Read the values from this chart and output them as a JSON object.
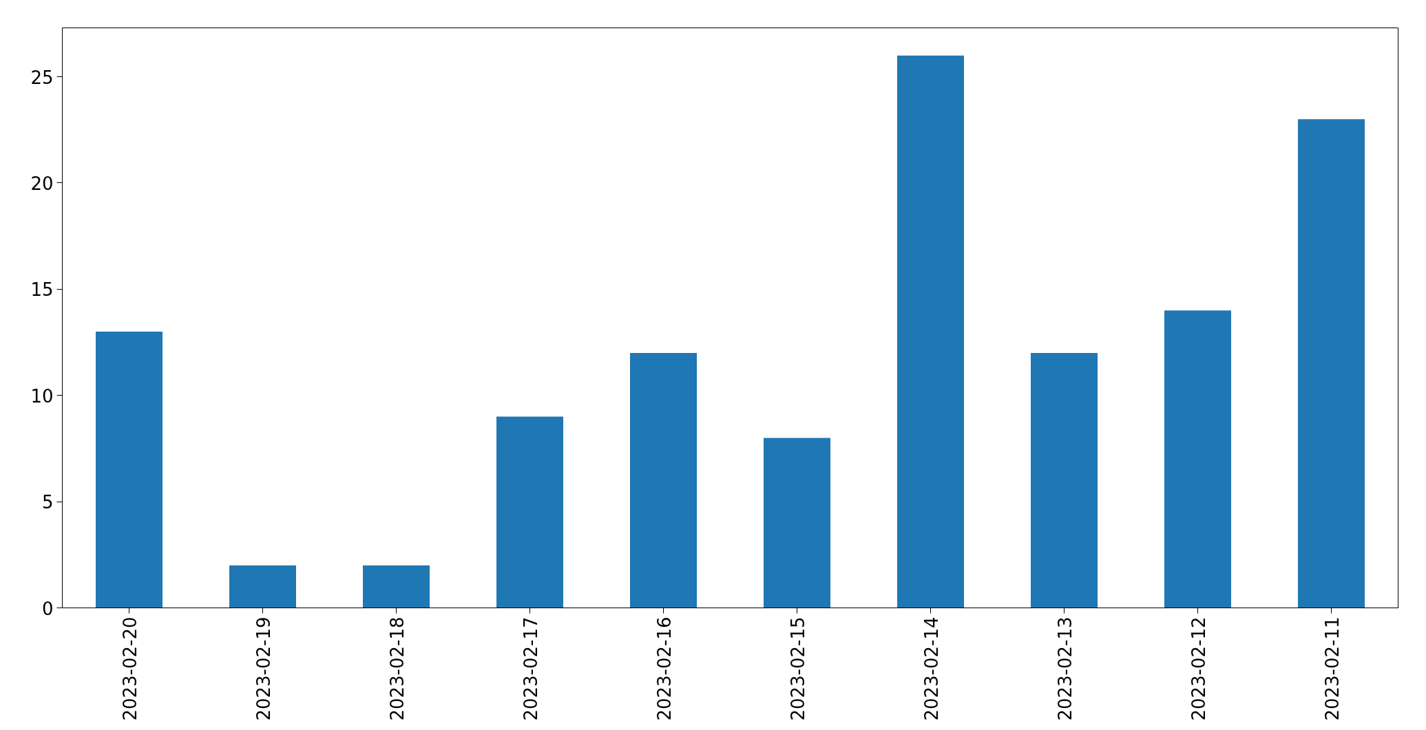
{
  "chart_data": {
    "type": "bar",
    "categories": [
      "2023-02-20",
      "2023-02-19",
      "2023-02-18",
      "2023-02-17",
      "2023-02-16",
      "2023-02-15",
      "2023-02-14",
      "2023-02-13",
      "2023-02-12",
      "2023-02-11"
    ],
    "values": [
      13,
      2,
      2,
      9,
      12,
      8,
      26,
      12,
      14,
      23
    ],
    "color": "#1f77b4",
    "ylim": [
      0,
      27.3
    ],
    "yticks": [
      0,
      5,
      10,
      15,
      20,
      25
    ],
    "grid": false
  }
}
